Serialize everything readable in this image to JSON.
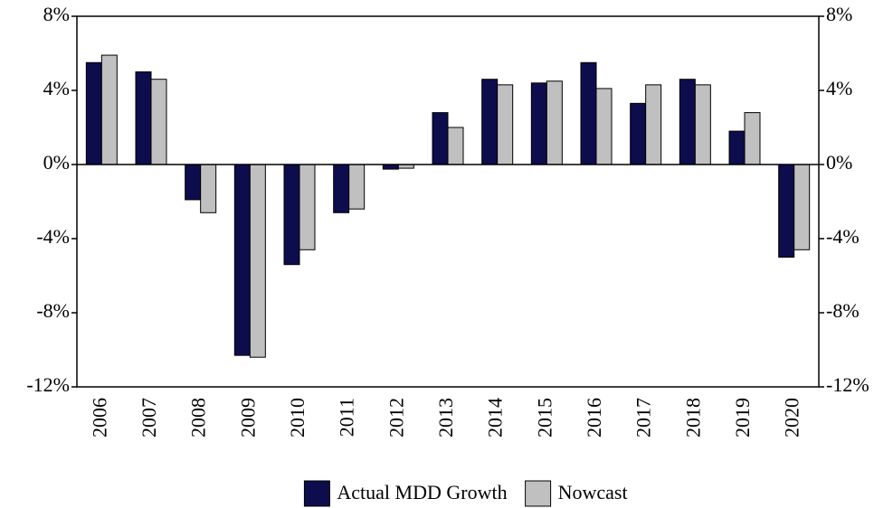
{
  "chart_data": {
    "type": "bar",
    "categories": [
      "2006",
      "2007",
      "2008",
      "2009",
      "2010",
      "2011",
      "2012",
      "2013",
      "2014",
      "2015",
      "2016",
      "2017",
      "2018",
      "2019",
      "2020"
    ],
    "series": [
      {
        "name": "Actual MDD Growth",
        "color": "#0d0d4d",
        "values": [
          5.5,
          5.0,
          -1.9,
          -10.3,
          -5.4,
          -2.6,
          -0.25,
          2.8,
          4.6,
          4.4,
          5.5,
          3.3,
          4.6,
          1.8,
          -5.0
        ]
      },
      {
        "name": "Nowcast",
        "color": "#c0c0c0",
        "values": [
          5.9,
          4.6,
          -2.6,
          -10.4,
          -4.6,
          -2.4,
          -0.2,
          2.0,
          4.3,
          4.5,
          4.1,
          4.3,
          4.3,
          2.8,
          -4.6
        ]
      }
    ],
    "ylim": [
      -12,
      8
    ],
    "yticks": [
      {
        "value": -12,
        "label": "-12%"
      },
      {
        "value": -8,
        "label": "-8%"
      },
      {
        "value": -4,
        "label": "-4%"
      },
      {
        "value": 0,
        "label": "0%"
      },
      {
        "value": 4,
        "label": "4%"
      },
      {
        "value": 8,
        "label": "8%"
      }
    ],
    "y2lim": [
      -12,
      8
    ],
    "y2ticks": [
      {
        "value": -12,
        "label": "-12%"
      },
      {
        "value": -8,
        "label": "-8%"
      },
      {
        "value": -4,
        "label": "-4%"
      },
      {
        "value": 0,
        "label": "0%"
      },
      {
        "value": 4,
        "label": "4%"
      },
      {
        "value": 8,
        "label": "8%"
      }
    ],
    "legend": "bottom"
  }
}
